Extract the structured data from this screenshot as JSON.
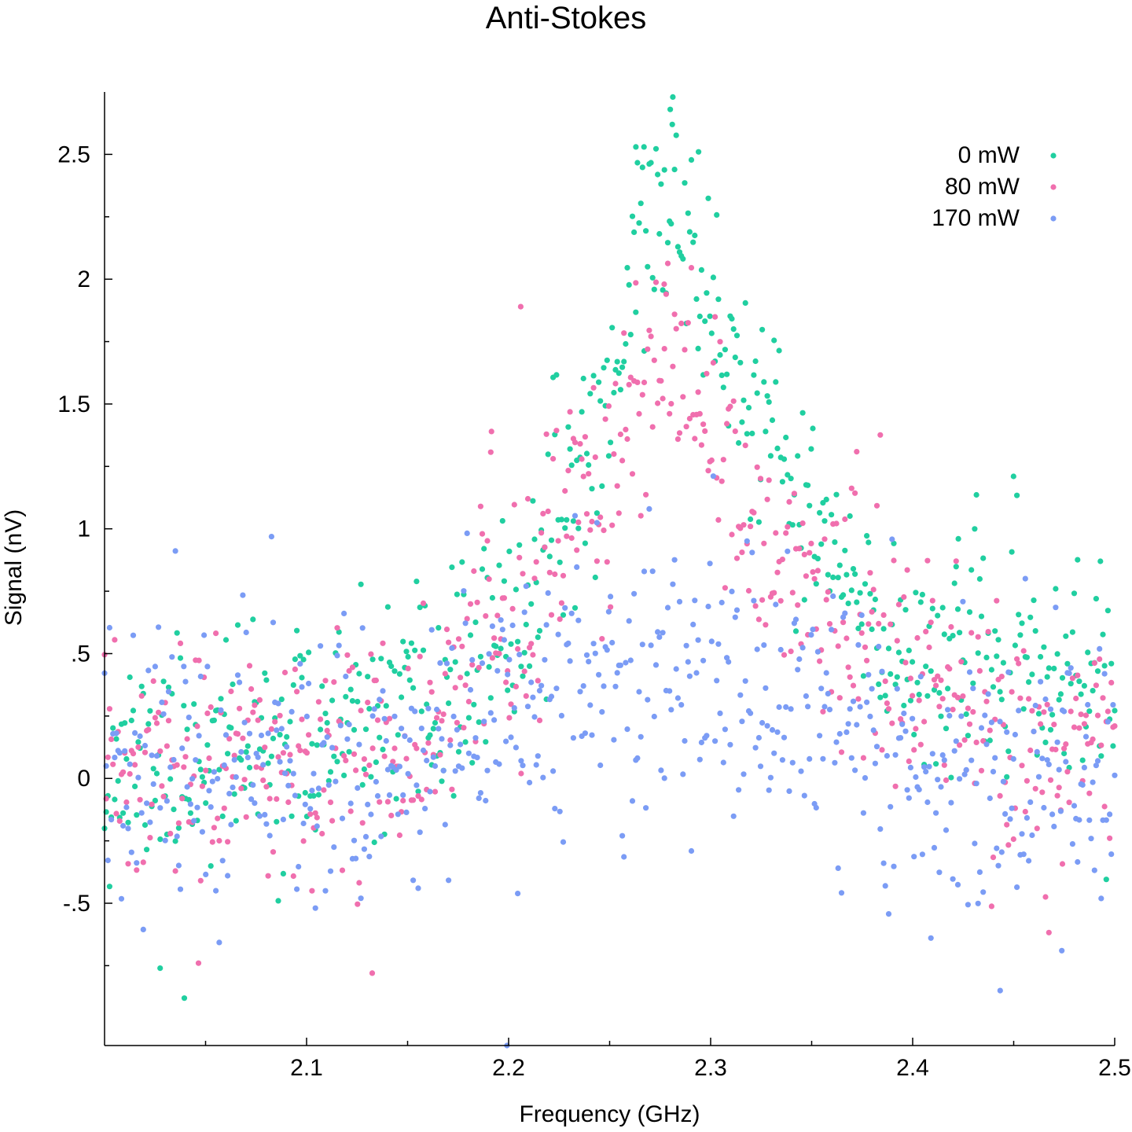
{
  "chart_data": {
    "type": "scatter",
    "title": "Anti-Stokes",
    "xlabel": "Frequency (GHz)",
    "ylabel": "Signal (nV)",
    "xlim": [
      2.0,
      2.5
    ],
    "ylim": [
      -1.07,
      2.75
    ],
    "x_ticks": [
      {
        "value": 2.1,
        "label": "2.1"
      },
      {
        "value": 2.2,
        "label": "2.2"
      },
      {
        "value": 2.3,
        "label": "2.3"
      },
      {
        "value": 2.4,
        "label": "2.4"
      },
      {
        "value": 2.5,
        "label": "2.5"
      }
    ],
    "x_minor_ticks": [
      2.05,
      2.15,
      2.25,
      2.35,
      2.45
    ],
    "y_ticks": [
      {
        "value": -0.5,
        "label": "-.5"
      },
      {
        "value": 0,
        "label": "0"
      },
      {
        "value": 0.5,
        "label": ".5"
      },
      {
        "value": 1,
        "label": "1"
      },
      {
        "value": 1.5,
        "label": "1.5"
      },
      {
        "value": 2,
        "label": "2"
      },
      {
        "value": 2.5,
        "label": "2.5"
      }
    ],
    "y_minor_ticks": [
      -0.75,
      -0.25,
      0.25,
      0.75,
      1.25,
      1.75,
      2.25
    ],
    "grid": false,
    "legend_position": "top-right",
    "sampling": {
      "x_start": 2.0,
      "x_end": 2.5,
      "n_points": 600
    },
    "series": [
      {
        "name": "0 mW",
        "color": "#20cfa0",
        "baseline": [
          [
            2.0,
            0.05
          ],
          [
            2.1,
            0.15
          ],
          [
            2.15,
            0.22
          ],
          [
            2.2,
            0.55
          ],
          [
            2.25,
            1.5
          ],
          [
            2.265,
            2.2
          ],
          [
            2.28,
            2.3
          ],
          [
            2.29,
            2.2
          ],
          [
            2.3,
            1.85
          ],
          [
            2.33,
            1.3
          ],
          [
            2.36,
            0.9
          ],
          [
            2.38,
            0.55
          ],
          [
            2.45,
            0.45
          ],
          [
            2.5,
            0.35
          ]
        ],
        "noise": 0.22,
        "seed": 11
      },
      {
        "name": "80 mW",
        "color": "#f06fae",
        "baseline": [
          [
            2.0,
            0.0
          ],
          [
            2.1,
            0.08
          ],
          [
            2.15,
            0.2
          ],
          [
            2.2,
            0.55
          ],
          [
            2.25,
            1.25
          ],
          [
            2.27,
            1.55
          ],
          [
            2.28,
            1.6
          ],
          [
            2.3,
            1.3
          ],
          [
            2.33,
            0.85
          ],
          [
            2.36,
            0.75
          ],
          [
            2.38,
            0.55
          ],
          [
            2.45,
            0.1
          ],
          [
            2.5,
            0.1
          ]
        ],
        "noise": 0.25,
        "seed": 23
      },
      {
        "name": "170 mW",
        "color": "#7b9cf5",
        "baseline": [
          [
            2.0,
            0.1
          ],
          [
            2.1,
            0.1
          ],
          [
            2.15,
            0.05
          ],
          [
            2.2,
            0.3
          ],
          [
            2.25,
            0.45
          ],
          [
            2.28,
            0.4
          ],
          [
            2.3,
            0.4
          ],
          [
            2.33,
            0.3
          ],
          [
            2.36,
            0.25
          ],
          [
            2.4,
            0.05
          ],
          [
            2.45,
            0.0
          ],
          [
            2.5,
            0.05
          ]
        ],
        "noise": 0.28,
        "seed": 37
      }
    ],
    "anchor_points": [
      {
        "series": 0,
        "x": 2.28,
        "y": 2.68
      },
      {
        "series": 0,
        "x": 2.281,
        "y": 2.62
      },
      {
        "series": 0,
        "x": 2.263,
        "y": 2.53
      },
      {
        "series": 0,
        "x": 2.267,
        "y": 2.53
      },
      {
        "series": 0,
        "x": 2.294,
        "y": 2.51
      },
      {
        "series": 0,
        "x": 2.0395,
        "y": -0.88
      },
      {
        "series": 0,
        "x": 2.0275,
        "y": -0.76
      },
      {
        "series": 0,
        "x": 2.4226,
        "y": 0.96
      },
      {
        "series": 0,
        "x": 2.4929,
        "y": 0.87
      },
      {
        "series": 1,
        "x": 2.206,
        "y": 1.89
      },
      {
        "series": 1,
        "x": 2.1915,
        "y": 1.39
      },
      {
        "series": 1,
        "x": 2.277,
        "y": 1.98
      },
      {
        "series": 1,
        "x": 2.1325,
        "y": -0.78
      },
      {
        "series": 1,
        "x": 2.0465,
        "y": -0.74
      },
      {
        "series": 2,
        "x": 2.4433,
        "y": -0.85
      },
      {
        "series": 2,
        "x": 2.4738,
        "y": -0.69
      },
      {
        "series": 2,
        "x": 2.1992,
        "y": -1.07
      }
    ]
  }
}
